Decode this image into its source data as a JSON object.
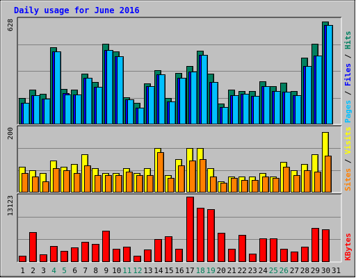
{
  "chart_data": {
    "type": "bar",
    "title": "Daily usage for June 2016",
    "x": [
      "1",
      "2",
      "3",
      "4",
      "5",
      "6",
      "7",
      "8",
      "9",
      "10",
      "11",
      "12",
      "13",
      "14",
      "15",
      "16",
      "17",
      "18",
      "19",
      "20",
      "21",
      "22",
      "23",
      "24",
      "25",
      "26",
      "27",
      "28",
      "29",
      "30",
      "31"
    ],
    "weekend_days": [
      "4",
      "5",
      "11",
      "12",
      "18",
      "19",
      "25",
      "26"
    ],
    "panels": [
      {
        "name": "pages-files-hits",
        "ymax_label": "628",
        "ymax": 628,
        "legend": [
          {
            "text": "Pages",
            "color": "#00c0ff"
          },
          {
            "text": "Files",
            "color": "#0000ff"
          },
          {
            "text": "Hits",
            "color": "#008060"
          }
        ],
        "series": [
          {
            "name": "Hits",
            "color": "#008060",
            "values": [
              160,
              210,
              185,
              465,
              215,
              210,
              305,
              255,
              485,
              440,
              165,
              130,
              245,
              325,
              160,
              310,
              350,
              445,
              305,
              125,
              210,
              200,
              200,
              260,
              230,
              250,
              200,
              400,
              485,
              620,
              0
            ]
          },
          {
            "name": "Files",
            "color": "#0000ff",
            "values": [
              130,
              175,
              155,
              440,
              190,
              180,
              280,
              225,
              450,
              410,
              150,
              100,
              230,
              300,
              140,
              280,
              320,
              420,
              255,
              105,
              175,
              185,
              170,
              230,
              200,
              195,
              175,
              350,
              415,
              600,
              0
            ]
          },
          {
            "name": "Pages",
            "color": "#00c0ff",
            "values": [
              130,
              175,
              155,
              440,
              180,
              180,
              280,
              225,
              450,
              410,
              150,
              100,
              230,
              300,
              140,
              280,
              320,
              420,
              255,
              105,
              175,
              185,
              170,
              230,
              200,
              195,
              175,
              350,
              415,
              600,
              0
            ]
          }
        ]
      },
      {
        "name": "visits-sites",
        "ymax_label": "200",
        "ymax": 200,
        "legend": [
          {
            "text": "Sites",
            "color": "#ff8000"
          },
          {
            "text": "Visits",
            "color": "#ffff00"
          }
        ],
        "series": [
          {
            "name": "Visits",
            "color": "#ffff00",
            "values": [
              80,
              70,
              60,
              100,
              80,
              90,
              120,
              75,
              60,
              60,
              75,
              60,
              75,
              140,
              55,
              105,
              140,
              140,
              75,
              35,
              50,
              50,
              50,
              60,
              50,
              95,
              70,
              90,
              120,
              190,
              0
            ]
          },
          {
            "name": "Sites",
            "color": "#ff8000",
            "values": [
              60,
              50,
              35,
              75,
              70,
              60,
              85,
              55,
              55,
              55,
              65,
              55,
              55,
              125,
              45,
              85,
              100,
              105,
              50,
              30,
              45,
              40,
              40,
              50,
              45,
              80,
              55,
              70,
              65,
              115,
              0
            ]
          }
        ]
      },
      {
        "name": "kbytes",
        "ymax_label": "13123",
        "ymax": 13123,
        "legend": [
          {
            "text": "KBytes",
            "color": "#ff0000"
          }
        ],
        "series": [
          {
            "name": "KBytes",
            "color": "#ff0000",
            "values": [
              1300,
              6000,
              1600,
              3200,
              2300,
              3000,
              4000,
              3600,
              6300,
              2600,
              3100,
              1200,
              2500,
              4600,
              5100,
              2600,
              13123,
              10900,
              10600,
              5900,
              2600,
              5500,
              1700,
              4800,
              4800,
              2600,
              2100,
              3100,
              6900,
              6500,
              0
            ]
          }
        ]
      }
    ]
  }
}
